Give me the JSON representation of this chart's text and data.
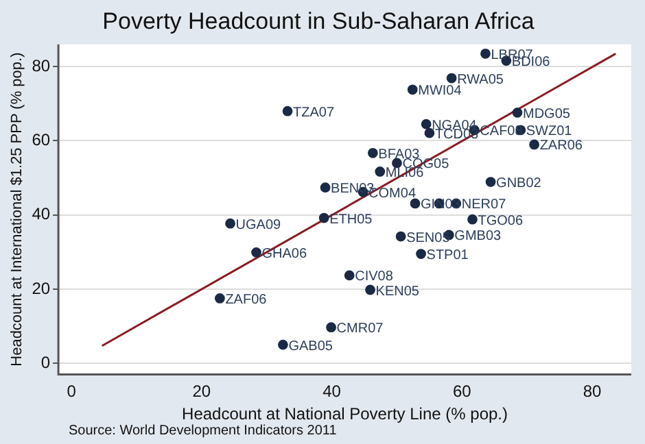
{
  "chart_data": {
    "type": "scatter",
    "title": "Poverty Headcount in Sub-Saharan Africa",
    "xlabel": "Headcount at National Poverty Line (% pop.)",
    "ylabel": "Headcount at International $1.25 PPP (% pop.)",
    "series": [
      {
        "color": "#1b2a44",
        "marker": "circle",
        "x": [
          33.2,
          39.0,
          24.4,
          38.8,
          28.4,
          22.8,
          32.5,
          39.9,
          63.6,
          66.8,
          58.4,
          52.4,
          68.5,
          54.5,
          55.0,
          61.9,
          69.0,
          71.1,
          46.3,
          50.0,
          47.4,
          44.8,
          64.4,
          52.8,
          56.5,
          59.1,
          61.6,
          50.6,
          58.0,
          53.7,
          42.7,
          45.9
        ],
        "values": [
          68.0,
          47.4,
          37.7,
          39.2,
          29.9,
          17.5,
          5.0,
          9.7,
          83.5,
          81.6,
          76.9,
          73.8,
          67.6,
          64.5,
          62.1,
          62.9,
          62.9,
          59.0,
          56.7,
          54.0,
          51.7,
          46.2,
          48.9,
          43.1,
          43.1,
          43.1,
          38.8,
          34.2,
          34.6,
          29.5,
          23.7,
          19.8
        ]
      },
      {
        "type": "line",
        "color": "#8b1c24",
        "marker": "none",
        "line_style": "solid",
        "x": [
          4.7,
          83.6
        ],
        "values": [
          4.7,
          83.5
        ]
      }
    ],
    "annotations": [
      {
        "text": "TZA07",
        "x": 33.2,
        "y": 68.0
      },
      {
        "text": "BEN03",
        "x": 39.0,
        "y": 47.4
      },
      {
        "text": "UGA09",
        "x": 24.4,
        "y": 37.7
      },
      {
        "text": "ETH05",
        "x": 38.8,
        "y": 39.2
      },
      {
        "text": "GHA06",
        "x": 28.4,
        "y": 29.9
      },
      {
        "text": "ZAF06",
        "x": 22.8,
        "y": 17.5
      },
      {
        "text": "GAB05",
        "x": 32.5,
        "y": 5.0
      },
      {
        "text": "CMR07",
        "x": 39.9,
        "y": 9.7
      },
      {
        "text": "LBR07",
        "x": 63.6,
        "y": 83.5
      },
      {
        "text": "BDI06",
        "x": 66.8,
        "y": 81.6
      },
      {
        "text": "RWA05",
        "x": 58.4,
        "y": 76.9
      },
      {
        "text": "MWI04",
        "x": 52.4,
        "y": 73.8
      },
      {
        "text": "MDG05",
        "x": 68.5,
        "y": 67.6
      },
      {
        "text": "NGA04",
        "x": 54.5,
        "y": 64.5
      },
      {
        "text": "TCD03",
        "x": 55.0,
        "y": 62.1
      },
      {
        "text": "CAF08",
        "x": 61.9,
        "y": 62.9
      },
      {
        "text": "SWZ01",
        "x": 69.0,
        "y": 62.9
      },
      {
        "text": "ZAR06",
        "x": 71.1,
        "y": 59.0
      },
      {
        "text": "BFA03",
        "x": 46.3,
        "y": 56.7
      },
      {
        "text": "COG05",
        "x": 50.0,
        "y": 54.0
      },
      {
        "text": "MLI06",
        "x": 47.4,
        "y": 51.7
      },
      {
        "text": "COM04",
        "x": 44.8,
        "y": 46.2
      },
      {
        "text": "GNB02",
        "x": 64.4,
        "y": 48.9
      },
      {
        "text": "GIN03",
        "x": 52.8,
        "y": 43.1
      },
      {
        "text": "NER07",
        "x": 59.1,
        "y": 43.1
      },
      {
        "text": "TGO06",
        "x": 61.6,
        "y": 38.8
      },
      {
        "text": "SEN05",
        "x": 50.6,
        "y": 34.2
      },
      {
        "text": "GMB03",
        "x": 58.0,
        "y": 34.6
      },
      {
        "text": "STP01",
        "x": 53.7,
        "y": 29.5
      },
      {
        "text": "CIV08",
        "x": 42.7,
        "y": 23.7
      },
      {
        "text": "KEN05",
        "x": 45.9,
        "y": 19.8
      },
      "Source: World Development Indicators 2011"
    ],
    "xlim": [
      -2,
      86
    ],
    "ylim": [
      -3,
      86
    ],
    "xticks": [
      0,
      20,
      40,
      60,
      80
    ],
    "yticks": [
      0,
      20,
      40,
      60,
      80
    ],
    "grid": "y",
    "legend": false
  }
}
